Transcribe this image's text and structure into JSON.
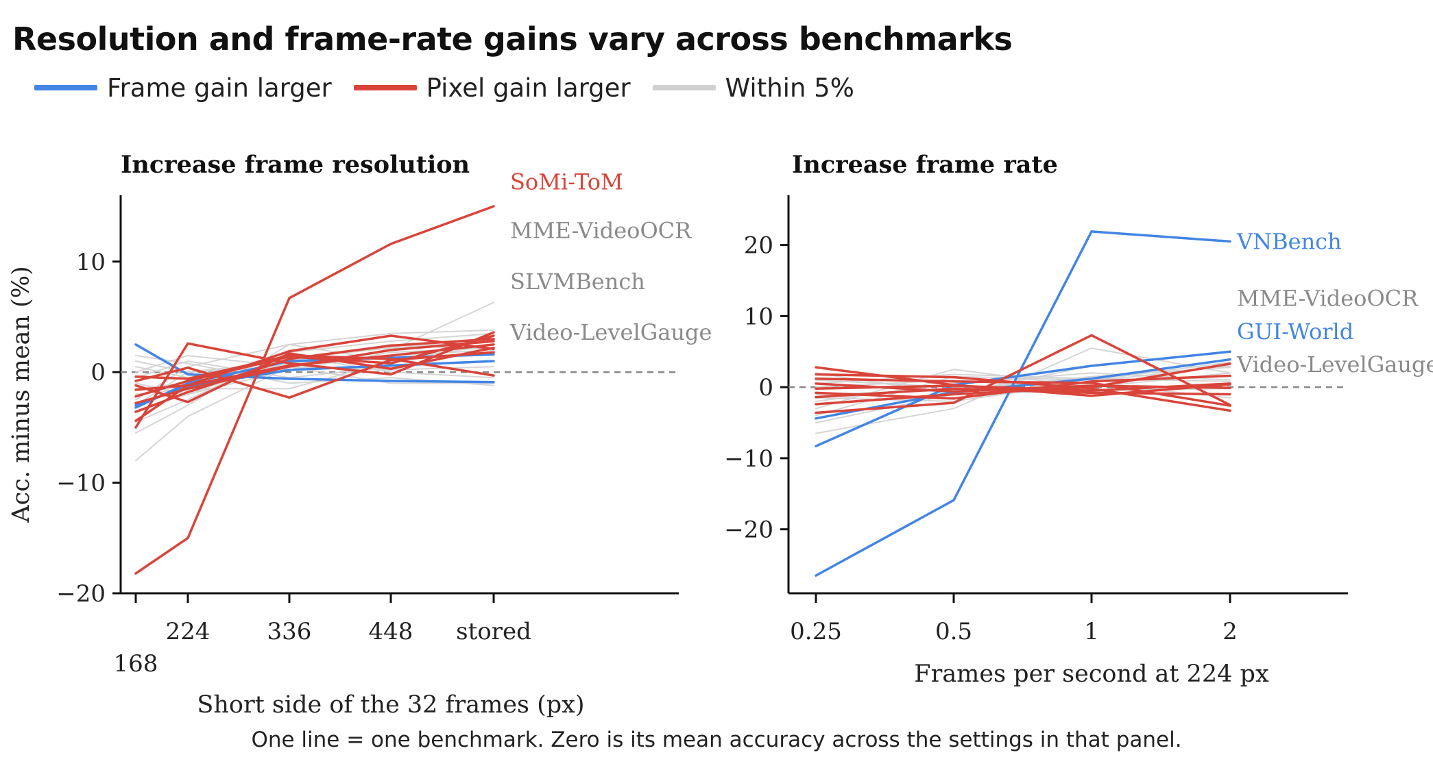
{
  "title": "Resolution and frame-rate gains vary across benchmarks",
  "caption": "One line = one benchmark. Zero is its mean accuracy across the settings in that panel.",
  "colors": {
    "frame": "#4285e4",
    "pixel": "#d9443a",
    "within": "#d0d0d0",
    "zero_line": "#888888",
    "axis": "#111111"
  },
  "legend": [
    {
      "label": "Frame gain larger",
      "color": "#4285e4"
    },
    {
      "label": "Pixel gain larger",
      "color": "#d9443a"
    },
    {
      "label": "Within 5%",
      "color": "#d0d0d0"
    }
  ],
  "chart_data": [
    {
      "type": "line",
      "title": "Increase frame resolution",
      "xlabel": "Short side of the 32 frames (px)",
      "ylabel": "Acc. minus mean (%)",
      "categories": [
        "168",
        "224",
        "336",
        "448",
        "stored"
      ],
      "ylim": [
        -20,
        16
      ],
      "yticks": [
        -20,
        -10,
        0,
        10
      ],
      "zero_line": true,
      "grid": false,
      "series": [
        {
          "name": "",
          "group": "within",
          "values": [
            -8,
            -4,
            0.5,
            2,
            6.3
          ]
        },
        {
          "name": "",
          "group": "within",
          "values": [
            -5.5,
            -3,
            2.5,
            3.5,
            3.8
          ]
        },
        {
          "name": "",
          "group": "within",
          "values": [
            -4.5,
            -2.5,
            1.8,
            2.8,
            3.5
          ]
        },
        {
          "name": "",
          "group": "within",
          "values": [
            -3.5,
            -2,
            1.2,
            2.2,
            2.8
          ]
        },
        {
          "name": "",
          "group": "within",
          "values": [
            -2.5,
            0.5,
            2.5,
            1,
            1.8
          ]
        },
        {
          "name": "",
          "group": "within",
          "values": [
            -1.5,
            -1,
            0.8,
            1.5,
            2
          ]
        },
        {
          "name": "",
          "group": "within",
          "values": [
            -0.5,
            1,
            -0.5,
            0.5,
            1
          ]
        },
        {
          "name": "",
          "group": "within",
          "values": [
            0.5,
            -0.5,
            1.5,
            0,
            -0.5
          ]
        },
        {
          "name": "",
          "group": "within",
          "values": [
            1.5,
            0.8,
            -1,
            -0.5,
            -1.2
          ]
        },
        {
          "name": "",
          "group": "within",
          "values": [
            -2,
            -1.5,
            -1.5,
            1,
            2.5
          ]
        },
        {
          "name": "",
          "group": "within",
          "values": [
            0,
            1.5,
            0.5,
            -1,
            -1
          ]
        },
        {
          "name": "",
          "group": "within",
          "values": [
            -3,
            0,
            1,
            2.5,
            2
          ]
        },
        {
          "name": "",
          "group": "within",
          "values": [
            -1,
            -2,
            0.2,
            1.8,
            2.2
          ]
        },
        {
          "name": "",
          "group": "within",
          "values": [
            1,
            0,
            0.5,
            0.2,
            0.5
          ]
        },
        {
          "name": "",
          "group": "frame",
          "values": [
            2.5,
            -0.2,
            -0.6,
            -0.8,
            -0.9
          ]
        },
        {
          "name": "",
          "group": "frame",
          "values": [
            -3.2,
            -1,
            1,
            1.3,
            1.6
          ]
        },
        {
          "name": "",
          "group": "frame",
          "values": [
            -3,
            -1.3,
            0.2,
            0.6,
            1
          ]
        },
        {
          "name": "SoMi-ToM",
          "group": "pixel",
          "values": [
            -18.2,
            -15,
            6.7,
            11.6,
            15
          ]
        },
        {
          "name": "",
          "group": "pixel",
          "values": [
            -5,
            2.6,
            0.8,
            -0.2,
            3.6
          ]
        },
        {
          "name": "",
          "group": "pixel",
          "values": [
            -4.4,
            -1.2,
            1.9,
            3.3,
            2.1
          ]
        },
        {
          "name": "",
          "group": "pixel",
          "values": [
            -3.6,
            -1.8,
            1.2,
            2.4,
            3
          ]
        },
        {
          "name": "",
          "group": "pixel",
          "values": [
            -2.8,
            -1.5,
            0.5,
            2,
            2.8
          ]
        },
        {
          "name": "",
          "group": "pixel",
          "values": [
            -2.2,
            -0.8,
            1.4,
            0.8,
            3.3
          ]
        },
        {
          "name": "",
          "group": "pixel",
          "values": [
            -1.6,
            -1.2,
            0.6,
            1.5,
            2.5
          ]
        },
        {
          "name": "",
          "group": "pixel",
          "values": [
            -1.2,
            -2.7,
            1.7,
            0.3,
            2.2
          ]
        },
        {
          "name": "",
          "group": "pixel",
          "values": [
            -0.8,
            0.4,
            -2.3,
            1.1,
            1.8
          ]
        },
        {
          "name": "",
          "group": "pixel",
          "values": [
            -0.4,
            -0.6,
            1.5,
            1.2,
            -0.3
          ]
        }
      ],
      "annotations": [
        {
          "text": "SoMi-ToM",
          "group": "pixel",
          "y": 17.2
        },
        {
          "text": "MME-VideoOCR",
          "group": "within",
          "y": 12.8
        },
        {
          "text": "SLVMBench",
          "group": "within",
          "y": 8.2
        },
        {
          "text": "Video-LevelGauge",
          "group": "within",
          "y": 3.6
        }
      ]
    },
    {
      "type": "line",
      "title": "Increase frame rate",
      "xlabel": "Frames per second at 224 px",
      "ylabel": "",
      "categories": [
        "0.25",
        "0.5",
        "1",
        "2"
      ],
      "ylim": [
        -29,
        27
      ],
      "yticks": [
        -20,
        -10,
        0,
        10,
        20
      ],
      "zero_line": true,
      "grid": false,
      "series": [
        {
          "name": "",
          "group": "within",
          "values": [
            -6.5,
            -3,
            5.5,
            2
          ]
        },
        {
          "name": "",
          "group": "within",
          "values": [
            -5,
            -1,
            3,
            5
          ]
        },
        {
          "name": "",
          "group": "within",
          "values": [
            -4,
            1.5,
            1,
            3.5
          ]
        },
        {
          "name": "",
          "group": "within",
          "values": [
            -3,
            2.5,
            0,
            2
          ]
        },
        {
          "name": "",
          "group": "within",
          "values": [
            -2,
            0.5,
            2,
            1
          ]
        },
        {
          "name": "",
          "group": "within",
          "values": [
            -1,
            -0.5,
            1.5,
            2.8
          ]
        },
        {
          "name": "",
          "group": "within",
          "values": [
            0,
            1,
            -0.5,
            -0.2
          ]
        },
        {
          "name": "",
          "group": "within",
          "values": [
            1,
            0,
            0.5,
            -1.5
          ]
        },
        {
          "name": "",
          "group": "within",
          "values": [
            2,
            -1,
            -0.5,
            0.5
          ]
        },
        {
          "name": "",
          "group": "within",
          "values": [
            -1.5,
            -2,
            0.8,
            3
          ]
        },
        {
          "name": "",
          "group": "within",
          "values": [
            0.5,
            1.8,
            1.2,
            0.8
          ]
        },
        {
          "name": "VNBench",
          "group": "frame",
          "values": [
            -26.5,
            -15.9,
            21.9,
            20.5
          ]
        },
        {
          "name": "GUI-World",
          "group": "frame",
          "values": [
            -8.3,
            0.3,
            3,
            5
          ]
        },
        {
          "name": "",
          "group": "frame",
          "values": [
            -4.4,
            -0.7,
            1.2,
            3.9
          ]
        },
        {
          "name": "",
          "group": "pixel",
          "values": [
            2.8,
            0.3,
            -1.2,
            0.4
          ]
        },
        {
          "name": "",
          "group": "pixel",
          "values": [
            1.8,
            1.4,
            -0.2,
            -3.3
          ]
        },
        {
          "name": "",
          "group": "pixel",
          "values": [
            1.2,
            0.8,
            0.6,
            -2.6
          ]
        },
        {
          "name": "",
          "group": "pixel",
          "values": [
            0.5,
            -0.6,
            0.2,
            -0.1
          ]
        },
        {
          "name": "",
          "group": "pixel",
          "values": [
            -0.2,
            0.2,
            -0.5,
            0.5
          ]
        },
        {
          "name": "",
          "group": "pixel",
          "values": [
            -0.8,
            -1.6,
            0.8,
            1.6
          ]
        },
        {
          "name": "",
          "group": "pixel",
          "values": [
            -1.4,
            -0.2,
            -0.8,
            -1
          ]
        },
        {
          "name": "",
          "group": "pixel",
          "values": [
            -2.4,
            -1,
            0,
            3.3
          ]
        },
        {
          "name": "",
          "group": "pixel",
          "values": [
            -3.6,
            -2.2,
            7.3,
            -2.5
          ]
        }
      ],
      "annotations": [
        {
          "text": "VNBench",
          "group": "frame",
          "y": 20.5
        },
        {
          "text": "MME-VideoOCR",
          "group": "within",
          "y": 12.5
        },
        {
          "text": "GUI-World",
          "group": "frame",
          "y": 7.8
        },
        {
          "text": "Video-LevelGauge",
          "group": "within",
          "y": 3.2
        }
      ]
    }
  ]
}
